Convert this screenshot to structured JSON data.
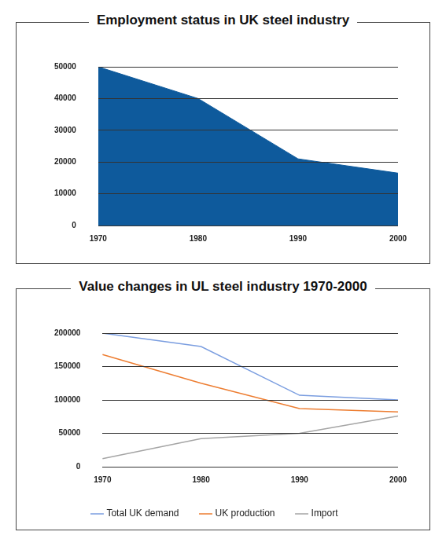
{
  "chart_data": [
    {
      "type": "area",
      "title": "Employment status in UK steel industry",
      "categories": [
        "1970",
        "1980",
        "1990",
        "2000"
      ],
      "values": [
        50000,
        40000,
        21000,
        16500
      ],
      "color": "#0e5a9c",
      "ylim": [
        0,
        50000
      ],
      "yticks": [
        0,
        10000,
        20000,
        30000,
        40000,
        50000
      ],
      "grid": true
    },
    {
      "type": "line",
      "title": "Value changes in UL steel industry 1970-2000",
      "categories": [
        "1970",
        "1980",
        "1990",
        "2000"
      ],
      "series": [
        {
          "name": "Total UK demand",
          "color": "#7b9ee0",
          "values": [
            200000,
            180000,
            107000,
            100000
          ]
        },
        {
          "name": "UK production",
          "color": "#ed7d31",
          "values": [
            168000,
            125000,
            87000,
            82000
          ]
        },
        {
          "name": "Import",
          "color": "#a5a5a5",
          "values": [
            12000,
            42000,
            50000,
            76000
          ]
        }
      ],
      "ylim": [
        0,
        200000
      ],
      "yticks": [
        0,
        50000,
        100000,
        150000,
        200000
      ],
      "grid": true,
      "legend": "bottom"
    }
  ]
}
